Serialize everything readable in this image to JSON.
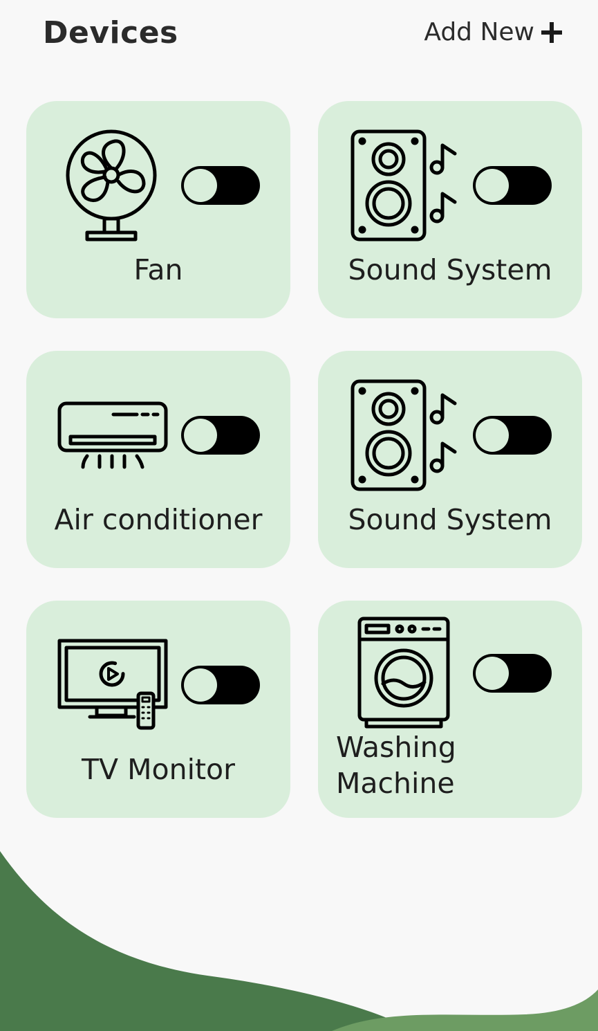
{
  "colors": {
    "background": "#f8f8f8",
    "card": "#d9eedb",
    "toggle_track": "#000000",
    "wave_dark": "#4a7a4b",
    "wave_light": "#6d9c63"
  },
  "header": {
    "title": "Devices",
    "add_new_label": "Add New",
    "add_icon": "plus-icon"
  },
  "devices": [
    {
      "label": "Fan",
      "icon": "fan-icon",
      "on": false
    },
    {
      "label": "Sound System",
      "icon": "speaker-music-icon",
      "on": false
    },
    {
      "label": "Air conditioner",
      "icon": "air-conditioner-icon",
      "on": false
    },
    {
      "label": "Sound System",
      "icon": "speaker-music-icon",
      "on": false
    },
    {
      "label": "TV Monitor",
      "icon": "tv-remote-icon",
      "on": false
    },
    {
      "label": "Washing Machine",
      "label_line1": "Washing",
      "label_line2": "Machine",
      "icon": "washing-machine-icon",
      "on": false
    }
  ]
}
